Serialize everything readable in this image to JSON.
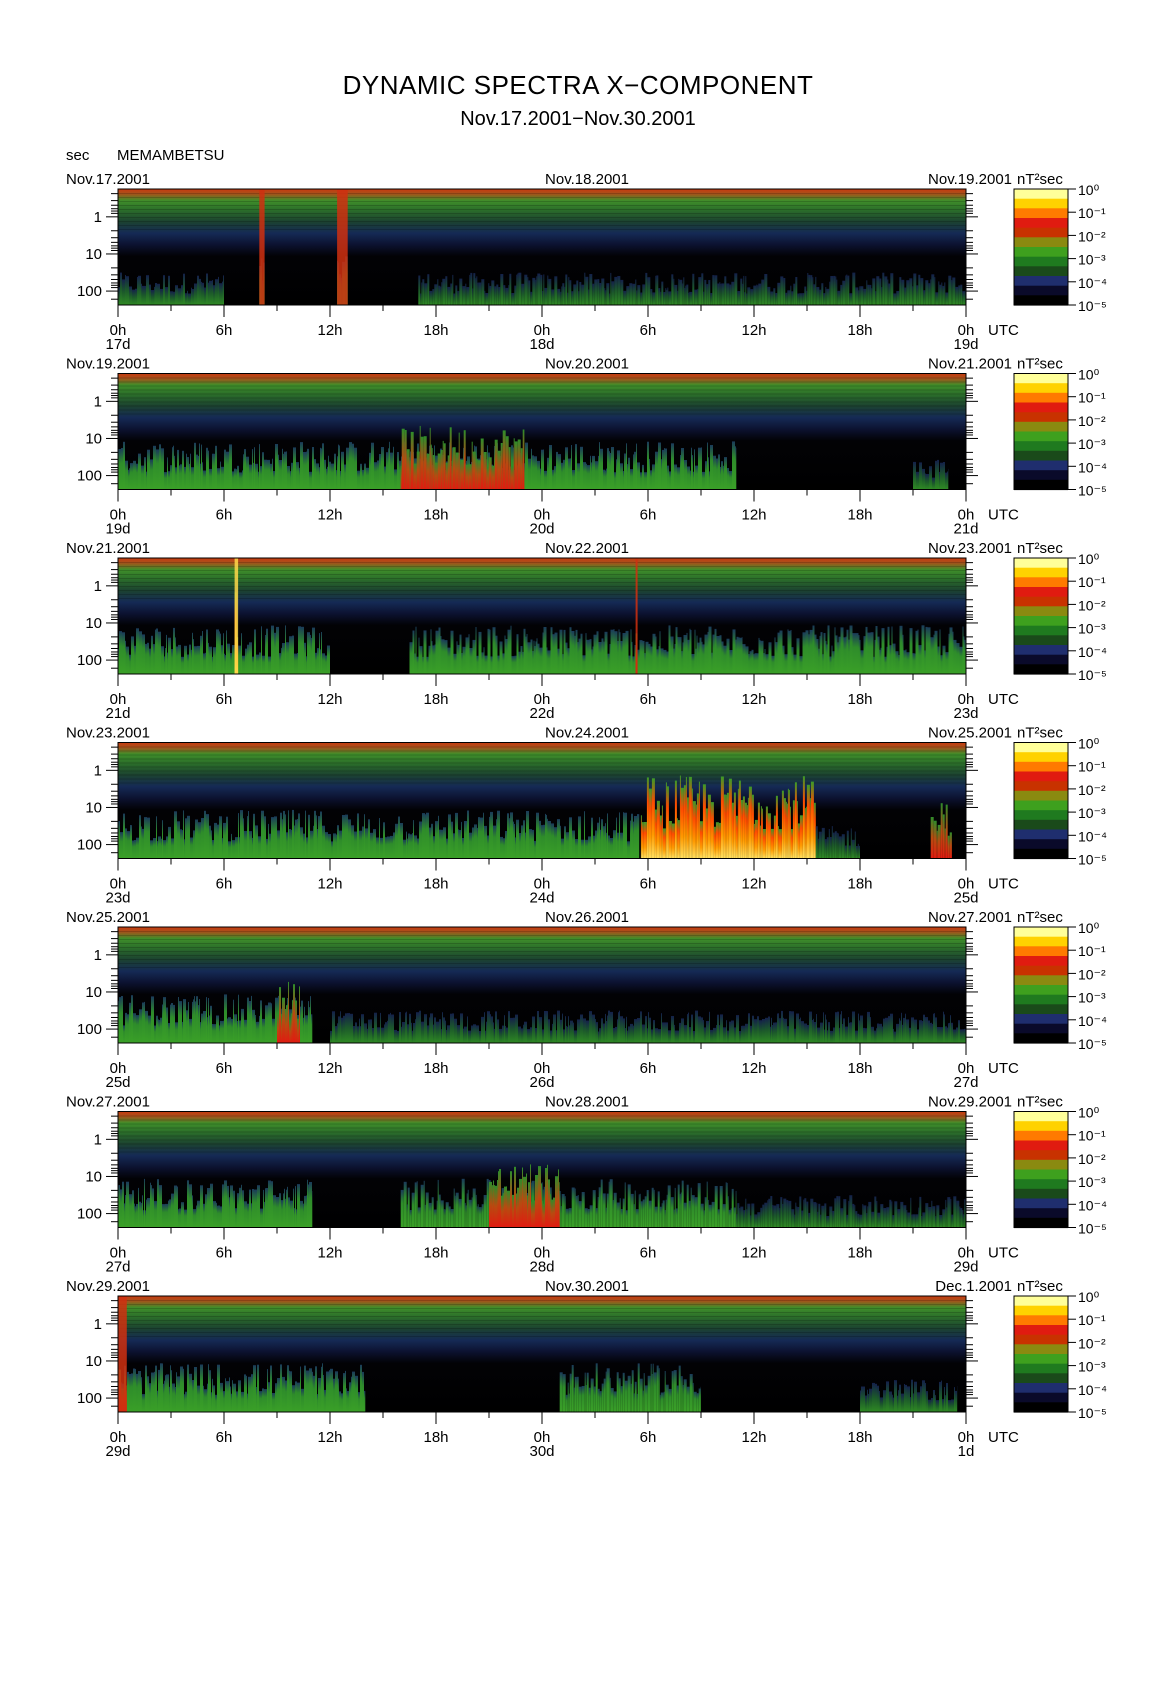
{
  "header": {
    "title": "DYNAMIC SPECTRA X−COMPONENT",
    "subtitle": "Nov.17.2001−Nov.30.2001",
    "period_unit": "sec",
    "station": "MEMAMBETSU"
  },
  "colorbar": {
    "unit_label": "nT²sec",
    "ticks": [
      "10⁰",
      "10⁻¹",
      "10⁻²",
      "10⁻³",
      "10⁻⁴",
      "10⁻⁵"
    ],
    "colors": [
      "#ffff99",
      "#ffd200",
      "#ff7a00",
      "#e01b10",
      "#c83200",
      "#8a8a10",
      "#3ea01e",
      "#1f7a1f",
      "#1a4a1a",
      "#1f2e6e",
      "#0a0a2a",
      "#000000"
    ]
  },
  "chart_data": [
    {
      "type": "heatmap",
      "title_left": "Nov.17.2001",
      "title_mid": "Nov.18.2001",
      "title_right": "Nov.19.2001",
      "x_hours": [
        0,
        6,
        12,
        18,
        24,
        30,
        36,
        42,
        48
      ],
      "x_tick_labels": [
        "0h",
        "6h",
        "12h",
        "18h",
        "0h",
        "6h",
        "12h",
        "18h",
        "0h"
      ],
      "day_labels": [
        "17d",
        "18d",
        "19d"
      ],
      "x_unit": "UTC",
      "y_tick_labels": [
        "1",
        "10",
        "100"
      ],
      "y_scale": "log",
      "activity": [
        {
          "start": 0,
          "end": 6,
          "level": "low"
        },
        {
          "start": 8.0,
          "end": 8.3,
          "level": "moderate"
        },
        {
          "start": 12.4,
          "end": 13.0,
          "level": "moderate"
        },
        {
          "start": 17,
          "end": 48,
          "level": "low"
        }
      ]
    },
    {
      "type": "heatmap",
      "title_left": "Nov.19.2001",
      "title_mid": "Nov.20.2001",
      "title_right": "Nov.21.2001",
      "x_hours": [
        0,
        6,
        12,
        18,
        24,
        30,
        36,
        42,
        48
      ],
      "x_tick_labels": [
        "0h",
        "6h",
        "12h",
        "18h",
        "0h",
        "6h",
        "12h",
        "18h",
        "0h"
      ],
      "day_labels": [
        "19d",
        "20d",
        "21d"
      ],
      "x_unit": "UTC",
      "y_tick_labels": [
        "1",
        "10",
        "100"
      ],
      "y_scale": "log",
      "activity": [
        {
          "start": 0,
          "end": 35,
          "level": "moderate"
        },
        {
          "start": 16,
          "end": 23,
          "level": "strong"
        },
        {
          "start": 45,
          "end": 47,
          "level": "low"
        }
      ]
    },
    {
      "type": "heatmap",
      "title_left": "Nov.21.2001",
      "title_mid": "Nov.22.2001",
      "title_right": "Nov.23.2001",
      "x_hours": [
        0,
        6,
        12,
        18,
        24,
        30,
        36,
        42,
        48
      ],
      "x_tick_labels": [
        "0h",
        "6h",
        "12h",
        "18h",
        "0h",
        "6h",
        "12h",
        "18h",
        "0h"
      ],
      "day_labels": [
        "21d",
        "22d",
        "23d"
      ],
      "x_unit": "UTC",
      "y_tick_labels": [
        "1",
        "10",
        "100"
      ],
      "y_scale": "log",
      "activity": [
        {
          "start": 0,
          "end": 12,
          "level": "moderate"
        },
        {
          "start": 6.6,
          "end": 6.8,
          "level": "intense"
        },
        {
          "start": 16.5,
          "end": 48,
          "level": "moderate"
        },
        {
          "start": 29.3,
          "end": 29.4,
          "level": "strong"
        }
      ]
    },
    {
      "type": "heatmap",
      "title_left": "Nov.23.2001",
      "title_mid": "Nov.24.2001",
      "title_right": "Nov.25.2001",
      "x_hours": [
        0,
        6,
        12,
        18,
        24,
        30,
        36,
        42,
        48
      ],
      "x_tick_labels": [
        "0h",
        "6h",
        "12h",
        "18h",
        "0h",
        "6h",
        "12h",
        "18h",
        "0h"
      ],
      "day_labels": [
        "23d",
        "24d",
        "25d"
      ],
      "x_unit": "UTC",
      "y_tick_labels": [
        "1",
        "10",
        "100"
      ],
      "y_scale": "log",
      "activity": [
        {
          "start": 0,
          "end": 29.5,
          "level": "moderate"
        },
        {
          "start": 29.6,
          "end": 39.5,
          "level": "intense"
        },
        {
          "start": 39.5,
          "end": 42,
          "level": "low"
        },
        {
          "start": 46,
          "end": 47.2,
          "level": "strong"
        }
      ]
    },
    {
      "type": "heatmap",
      "title_left": "Nov.25.2001",
      "title_mid": "Nov.26.2001",
      "title_right": "Nov.27.2001",
      "x_hours": [
        0,
        6,
        12,
        18,
        24,
        30,
        36,
        42,
        48
      ],
      "x_tick_labels": [
        "0h",
        "6h",
        "12h",
        "18h",
        "0h",
        "6h",
        "12h",
        "18h",
        "0h"
      ],
      "day_labels": [
        "25d",
        "26d",
        "27d"
      ],
      "x_unit": "UTC",
      "y_tick_labels": [
        "1",
        "10",
        "100"
      ],
      "y_scale": "log",
      "activity": [
        {
          "start": 0,
          "end": 11,
          "level": "moderate"
        },
        {
          "start": 9,
          "end": 10.3,
          "level": "strong"
        },
        {
          "start": 12,
          "end": 48,
          "level": "low"
        }
      ]
    },
    {
      "type": "heatmap",
      "title_left": "Nov.27.2001",
      "title_mid": "Nov.28.2001",
      "title_right": "Nov.29.2001",
      "x_hours": [
        0,
        6,
        12,
        18,
        24,
        30,
        36,
        42,
        48
      ],
      "x_tick_labels": [
        "0h",
        "6h",
        "12h",
        "18h",
        "0h",
        "6h",
        "12h",
        "18h",
        "0h"
      ],
      "day_labels": [
        "27d",
        "28d",
        "29d"
      ],
      "x_unit": "UTC",
      "y_tick_labels": [
        "1",
        "10",
        "100"
      ],
      "y_scale": "log",
      "activity": [
        {
          "start": 0,
          "end": 11,
          "level": "moderate"
        },
        {
          "start": 16,
          "end": 35,
          "level": "moderate"
        },
        {
          "start": 21,
          "end": 25,
          "level": "strong"
        },
        {
          "start": 35,
          "end": 48,
          "level": "low"
        }
      ]
    },
    {
      "type": "heatmap",
      "title_left": "Nov.29.2001",
      "title_mid": "Nov.30.2001",
      "title_right": "Dec.1.2001",
      "x_hours": [
        0,
        6,
        12,
        18,
        24,
        30,
        36,
        42,
        48
      ],
      "x_tick_labels": [
        "0h",
        "6h",
        "12h",
        "18h",
        "0h",
        "6h",
        "12h",
        "18h",
        "0h"
      ],
      "day_labels": [
        "29d",
        "30d",
        "1d"
      ],
      "x_unit": "UTC",
      "y_tick_labels": [
        "1",
        "10",
        "100"
      ],
      "y_scale": "log",
      "activity": [
        {
          "start": 0,
          "end": 14,
          "level": "moderate"
        },
        {
          "start": 0,
          "end": 0.5,
          "level": "strong"
        },
        {
          "start": 25,
          "end": 33,
          "level": "moderate"
        },
        {
          "start": 42,
          "end": 47.5,
          "level": "low"
        }
      ]
    }
  ]
}
